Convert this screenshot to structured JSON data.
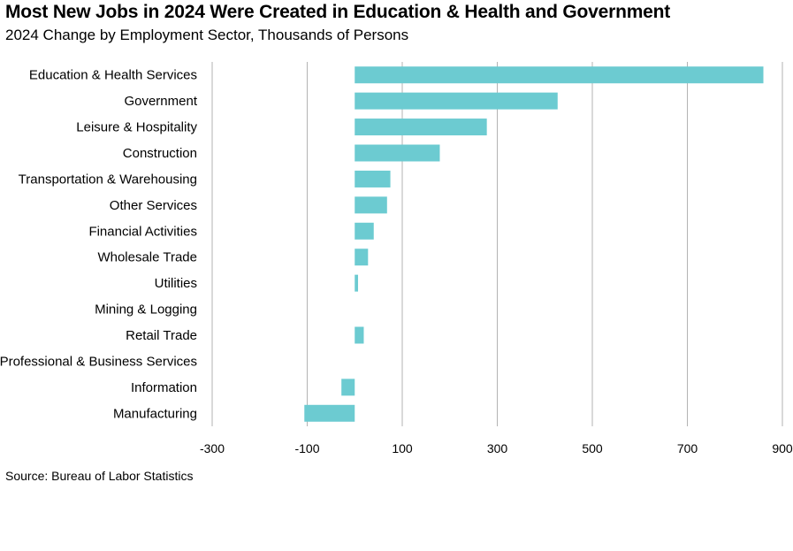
{
  "title": "Most New Jobs in 2024 Were Created in Education & Health and Government",
  "subtitle": "2024 Change by Employment Sector, Thousands of Persons",
  "source": "Source: Bureau of Labor Statistics",
  "chart_data": {
    "type": "bar",
    "orientation": "horizontal",
    "categories": [
      "Education & Health Services",
      "Government",
      "Leisure & Hospitality",
      "Construction",
      "Transportation & Warehousing",
      "Other Services",
      "Financial Activities",
      "Wholesale Trade",
      "Utilities",
      "Mining & Logging",
      "Retail Trade",
      "Professional & Business Services",
      "Information",
      "Manufacturing"
    ],
    "values": [
      860,
      427,
      278,
      179,
      75,
      68,
      40,
      28,
      7,
      0,
      19,
      0,
      -28,
      -106
    ],
    "xlim": [
      -300,
      900
    ],
    "xticks": [
      -300,
      -100,
      100,
      300,
      500,
      700,
      900
    ],
    "xtick_labels": [
      "-300",
      "-100",
      "100",
      "300",
      "500",
      "700",
      "900"
    ],
    "grid": true,
    "bar_color": "#6ccbd1"
  }
}
